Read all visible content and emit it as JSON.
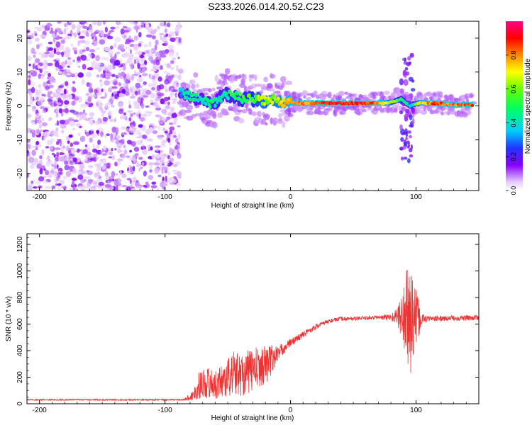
{
  "title": "S233.2026.014.20.52.C23",
  "chart_data": [
    {
      "type": "heatmap",
      "xlabel": "Height of straight line (km)",
      "ylabel": "Frequency (Hz)",
      "xlim": [
        -210,
        150
      ],
      "ylim": [
        -25,
        25
      ],
      "x_ticks": [
        -200,
        -100,
        0,
        100
      ],
      "y_ticks": [
        -20,
        -10,
        0,
        10,
        20
      ],
      "noise_region_x": [
        -210,
        -88
      ],
      "ridge": [
        {
          "x": -88,
          "y": 4,
          "v": 0.35
        },
        {
          "x": -80,
          "y": 3,
          "v": 0.45
        },
        {
          "x": -72,
          "y": 2,
          "v": 0.4
        },
        {
          "x": -62,
          "y": 0.5,
          "v": 0.45
        },
        {
          "x": -52,
          "y": 3.5,
          "v": 0.45
        },
        {
          "x": -45,
          "y": 3,
          "v": 0.5
        },
        {
          "x": -38,
          "y": 2,
          "v": 0.5
        },
        {
          "x": -30,
          "y": 2,
          "v": 0.55
        },
        {
          "x": -22,
          "y": 1.5,
          "v": 0.65
        },
        {
          "x": -15,
          "y": 2,
          "v": 0.6
        },
        {
          "x": -8,
          "y": 1,
          "v": 0.7
        },
        {
          "x": 0,
          "y": 1,
          "v": 0.75
        },
        {
          "x": 10,
          "y": 0.8,
          "v": 0.8
        },
        {
          "x": 20,
          "y": 0.8,
          "v": 0.82
        },
        {
          "x": 35,
          "y": 0.8,
          "v": 0.9
        },
        {
          "x": 50,
          "y": 0.8,
          "v": 0.88
        },
        {
          "x": 65,
          "y": 0.8,
          "v": 0.85
        },
        {
          "x": 78,
          "y": 1,
          "v": 0.7
        },
        {
          "x": 88,
          "y": 2,
          "v": 0.5
        },
        {
          "x": 95,
          "y": 0,
          "v": 0.35
        },
        {
          "x": 102,
          "y": 0.8,
          "v": 0.7
        },
        {
          "x": 115,
          "y": 0.8,
          "v": 0.85
        },
        {
          "x": 130,
          "y": 0.3,
          "v": 0.8
        },
        {
          "x": 145,
          "y": 0.3,
          "v": 0.85
        }
      ],
      "colorbar": {
        "label": "Normalized spectral amplitude",
        "range": [
          0,
          1
        ],
        "ticks": [
          0.0,
          0.2,
          0.4,
          0.6,
          0.8
        ],
        "tick_labels": [
          "0.0",
          "0.2",
          "0.4",
          "0.6",
          "0.8"
        ]
      },
      "grid": false
    },
    {
      "type": "line",
      "xlabel": "Height of straight line (km)",
      "ylabel": "SNR (10 * v/v)",
      "xlim": [
        -210,
        150
      ],
      "ylim": [
        0,
        1280
      ],
      "x_ticks": [
        -200,
        -100,
        0,
        100
      ],
      "y_ticks": [
        0,
        200,
        400,
        600,
        800,
        1000,
        1200
      ],
      "color": "#ee3333",
      "series": [
        {
          "x": [
            -210,
            -180,
            -150,
            -120,
            -100,
            -85,
            -78,
            -72,
            -65,
            -60,
            -55,
            -50,
            -45,
            -40,
            -35,
            -30,
            -25,
            -20,
            -15,
            -10,
            -5,
            0,
            10,
            20,
            30,
            40,
            50,
            60,
            70,
            80,
            85,
            90,
            95,
            100,
            105,
            110,
            120,
            130,
            140,
            150
          ],
          "values": [
            30,
            30,
            30,
            30,
            30,
            30,
            60,
            150,
            160,
            140,
            170,
            200,
            230,
            220,
            230,
            260,
            270,
            300,
            330,
            380,
            420,
            460,
            520,
            580,
            620,
            640,
            640,
            645,
            650,
            650,
            660,
            650,
            640,
            640,
            640,
            640,
            640,
            645,
            645,
            650
          ],
          "noise_amplitude": [
            5,
            5,
            5,
            5,
            5,
            5,
            40,
            110,
            120,
            100,
            130,
            150,
            170,
            160,
            170,
            170,
            150,
            150,
            120,
            60,
            40,
            30,
            25,
            20,
            15,
            15,
            15,
            15,
            15,
            30,
            60,
            250,
            500,
            220,
            40,
            20,
            20,
            20,
            20,
            20
          ]
        }
      ],
      "grid": false
    }
  ]
}
